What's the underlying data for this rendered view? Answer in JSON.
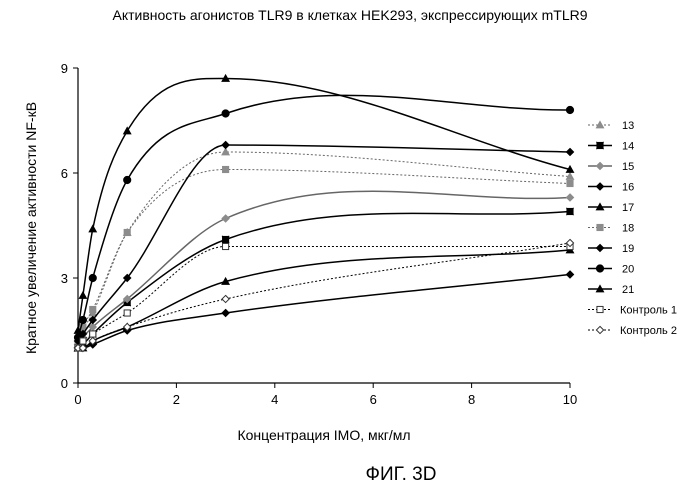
{
  "figure_caption": "ФИГ. 3D",
  "chart_data": {
    "type": "line",
    "title": "Активность агонистов TLR9 в клетках HEK293, экспрессирующих mTLR9",
    "xlabel": "Концентрация IMO, мкг/мл",
    "ylabel": "Кратное увеличение активности NF-кВ",
    "xlim": [
      0,
      10
    ],
    "ylim": [
      0,
      9
    ],
    "xticks": [
      "0",
      "2",
      "4",
      "6",
      "8",
      "10"
    ],
    "yticks": [
      "0",
      "3",
      "6",
      "9"
    ],
    "grid": false,
    "legend_position": "right",
    "x": [
      0,
      0.1,
      0.3,
      1,
      3,
      10
    ],
    "series": [
      {
        "name": "13",
        "marker": "triangle",
        "fill": "gray",
        "dash": true,
        "values": [
          1.1,
          1.5,
          2.0,
          4.3,
          6.6,
          5.9
        ]
      },
      {
        "name": "14",
        "marker": "square-x",
        "fill": "black",
        "dash": false,
        "values": [
          1.0,
          1.1,
          1.4,
          2.3,
          4.1,
          4.9
        ]
      },
      {
        "name": "15",
        "marker": "diamond",
        "fill": "gray",
        "dash": false,
        "values": [
          1.1,
          1.3,
          1.6,
          2.4,
          4.7,
          5.3
        ]
      },
      {
        "name": "16",
        "marker": "diamond",
        "fill": "black",
        "dash": false,
        "values": [
          1.0,
          1.0,
          1.1,
          1.5,
          2.0,
          3.1
        ]
      },
      {
        "name": "17",
        "marker": "triangle",
        "fill": "black",
        "dash": false,
        "values": [
          1.0,
          1.0,
          1.2,
          1.6,
          2.9,
          3.8
        ]
      },
      {
        "name": "18",
        "marker": "square",
        "fill": "gray",
        "dash": true,
        "values": [
          1.2,
          1.6,
          2.1,
          4.3,
          6.1,
          5.7
        ]
      },
      {
        "name": "19",
        "marker": "diamond",
        "fill": "black",
        "dash": false,
        "values": [
          1.2,
          1.4,
          1.8,
          3.0,
          6.8,
          6.6
        ]
      },
      {
        "name": "20",
        "marker": "circle",
        "fill": "black",
        "dash": false,
        "values": [
          1.3,
          1.8,
          3.0,
          5.8,
          7.7,
          7.8
        ]
      },
      {
        "name": "21",
        "marker": "triangle",
        "fill": "black",
        "dash": false,
        "values": [
          1.5,
          2.5,
          4.4,
          7.2,
          8.7,
          6.1
        ]
      },
      {
        "name": "Контроль 1",
        "marker": "square",
        "fill": "white",
        "dash": true,
        "values": [
          1.0,
          1.2,
          1.4,
          2.0,
          3.9,
          3.9
        ]
      },
      {
        "name": "Контроль 2",
        "marker": "diamond",
        "fill": "white",
        "dash": true,
        "values": [
          1.0,
          1.0,
          1.2,
          1.6,
          2.4,
          4.0
        ]
      }
    ]
  }
}
